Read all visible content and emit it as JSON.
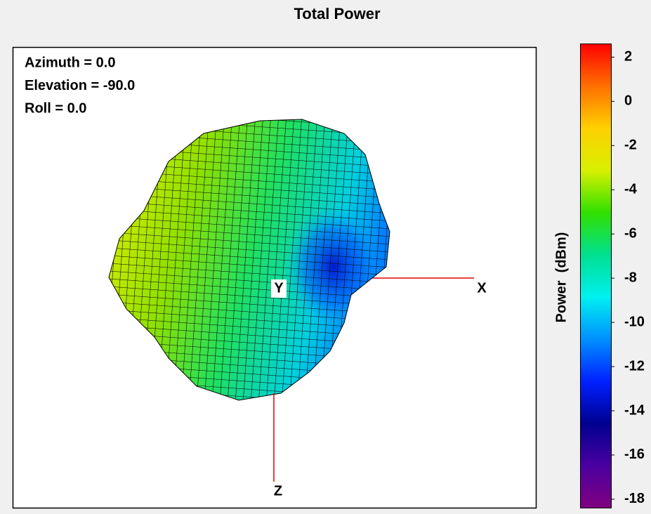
{
  "chart_data": {
    "type": "surface3d",
    "title": "Total Power",
    "annotations": [
      "Azimuth = 0.0",
      "Elevation = -90.0",
      "Roll = 0.0"
    ],
    "axis_labels": [
      "X",
      "Y",
      "Z"
    ],
    "colorbar_label": "Power  (dBm)",
    "clim": [
      -18.4,
      2.6
    ],
    "cticks": [
      2,
      0,
      -2,
      -4,
      -6,
      -8,
      -10,
      -12,
      -14,
      -16,
      -18
    ],
    "colormap": [
      "#800080",
      "#4b00a0",
      "#000090",
      "#0020ff",
      "#0090ff",
      "#00f0f0",
      "#00e090",
      "#30e000",
      "#d8f000",
      "#ffd000",
      "#ff7000",
      "#ff0000"
    ]
  }
}
